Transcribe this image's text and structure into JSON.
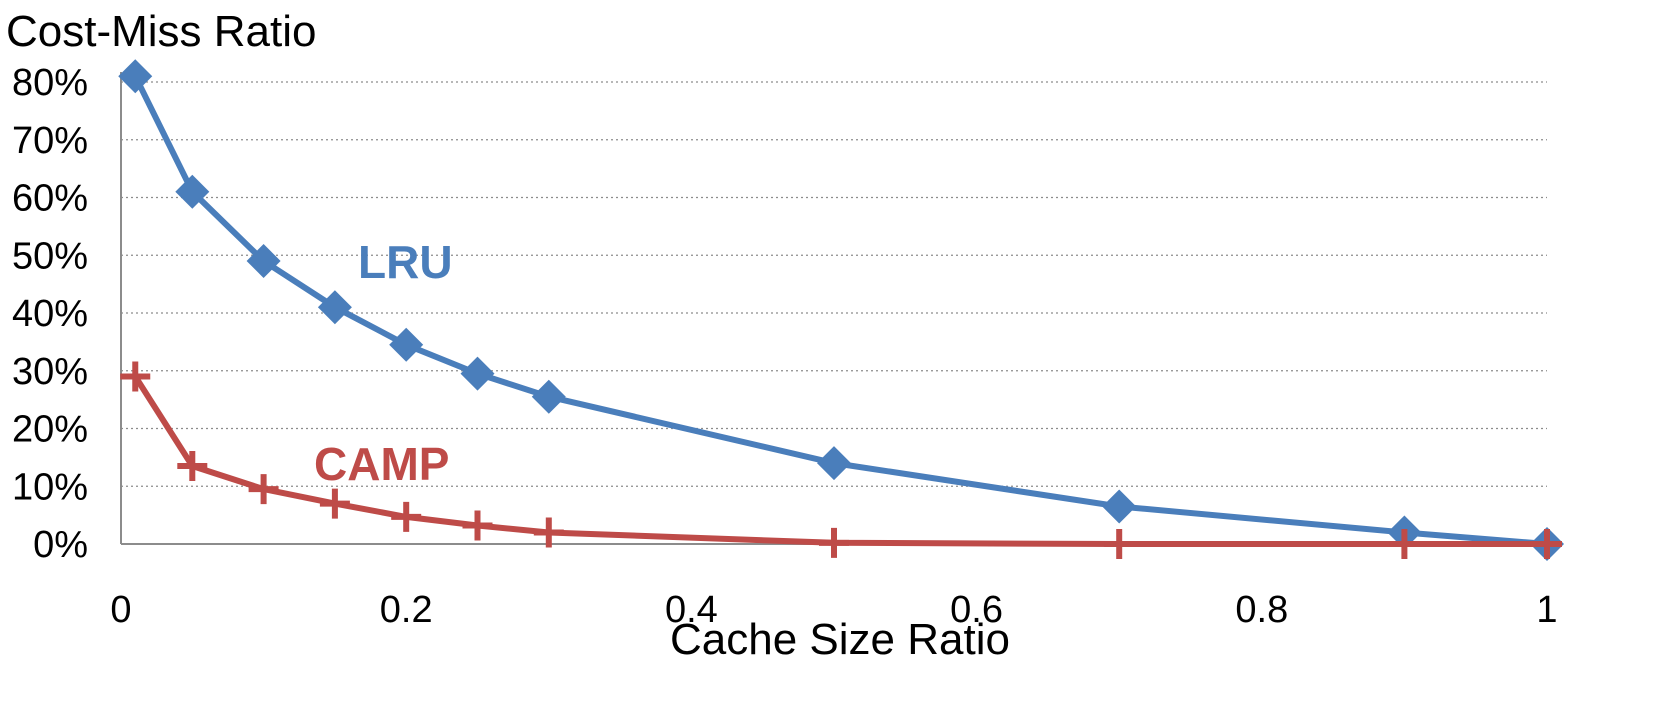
{
  "chart_data": {
    "type": "line",
    "ylabel": "Cost-Miss Ratio",
    "xlabel": "Cache Size Ratio",
    "xlim": [
      0,
      1
    ],
    "ylim": [
      0,
      0.8
    ],
    "x_ticks": [
      0,
      0.2,
      0.4,
      0.6,
      0.8,
      1
    ],
    "x_tick_labels": [
      "0",
      "0.2",
      "0.4",
      "0.6",
      "0.8",
      "1"
    ],
    "y_ticks": [
      0,
      0.1,
      0.2,
      0.3,
      0.4,
      0.5,
      0.6,
      0.7,
      0.8
    ],
    "y_tick_labels": [
      "0%",
      "10%",
      "20%",
      "30%",
      "40%",
      "50%",
      "60%",
      "70%",
      "80%"
    ],
    "grid": {
      "horizontal": true,
      "style": "dotted"
    },
    "legend": "inline labels",
    "series": [
      {
        "name": "LRU",
        "color": "#4A7EBB",
        "marker": "diamond",
        "x": [
          0.01,
          0.05,
          0.1,
          0.15,
          0.2,
          0.25,
          0.3,
          0.5,
          0.7,
          0.9,
          1.0
        ],
        "y": [
          0.81,
          0.61,
          0.49,
          0.41,
          0.345,
          0.295,
          0.255,
          0.14,
          0.065,
          0.02,
          0.0
        ]
      },
      {
        "name": "CAMP",
        "color": "#BE4B48",
        "marker": "plus",
        "x": [
          0.01,
          0.05,
          0.1,
          0.15,
          0.2,
          0.25,
          0.3,
          0.5,
          0.7,
          0.9,
          1.0
        ],
        "y": [
          0.29,
          0.135,
          0.095,
          0.07,
          0.047,
          0.032,
          0.02,
          0.002,
          0.0,
          0.0,
          0.0
        ]
      }
    ]
  }
}
